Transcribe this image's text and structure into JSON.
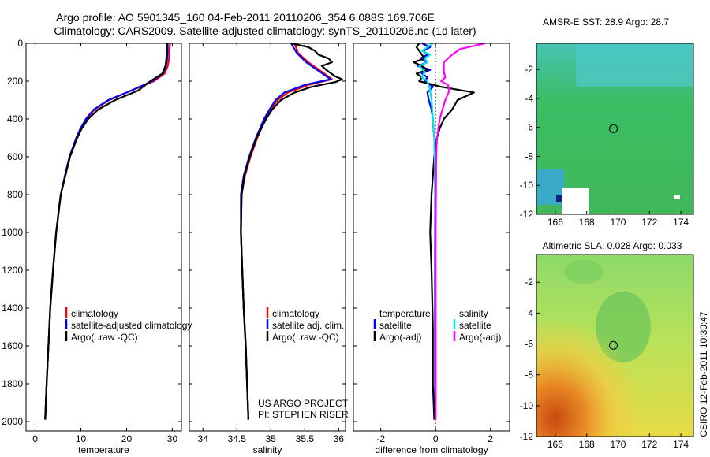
{
  "header": {
    "title_line1": "Argo profile: AO 5901345_160 04-Feb-2011 20110206_354 6.088S 169.706E",
    "title_line2": "Climatology: CARS2009. Satellite-adjusted climatology: synTS_20110206.nc (1d later)"
  },
  "side_label": "CSIRO 12-Feb-2011 10:30:47",
  "colors": {
    "climatology": "#ff0000",
    "satellite": "#0000ff",
    "argo": "#000000",
    "sat_salinity": "#00e5e5",
    "argo_salinity": "#ff00ff"
  },
  "chart_data": [
    {
      "id": "temperature",
      "type": "line",
      "xlabel": "temperature",
      "ylabel": "",
      "xlim": [
        -2,
        32
      ],
      "ylim": [
        2050,
        0
      ],
      "x_ticks": [
        "0",
        "10",
        "20",
        "30"
      ],
      "y_ticks": [
        "0",
        "200",
        "400",
        "600",
        "800",
        "1000",
        "1200",
        "1400",
        "1600",
        "1800",
        "2000"
      ],
      "grid": false,
      "legend": {
        "placement": "lower-center",
        "entries": [
          "climatology",
          "satellite-adjusted climatology",
          "Argo(..raw -QC)"
        ]
      },
      "series": [
        {
          "name": "climatology",
          "color": "#ff0000",
          "depth": [
            0,
            40,
            80,
            120,
            160,
            200,
            250,
            300,
            350,
            400,
            450,
            500,
            600,
            700,
            800,
            1000,
            1200,
            1400,
            1600,
            1800,
            1990
          ],
          "values": [
            29.5,
            29.4,
            29.3,
            29.0,
            28.3,
            26.0,
            21.0,
            16.2,
            13.0,
            11.2,
            10.0,
            9.1,
            7.6,
            6.6,
            5.6,
            4.6,
            3.9,
            3.3,
            2.9,
            2.5,
            2.2
          ]
        },
        {
          "name": "satellite-adjusted climatology",
          "color": "#0000ff",
          "depth": [
            0,
            40,
            80,
            120,
            160,
            200,
            250,
            300,
            350,
            400,
            450,
            500,
            600,
            700,
            800,
            1000,
            1200,
            1400,
            1600,
            1800,
            1990
          ],
          "values": [
            29.0,
            29.0,
            28.9,
            28.6,
            28.0,
            25.6,
            21.0,
            16.0,
            12.8,
            11.1,
            9.9,
            9.0,
            7.5,
            6.5,
            5.6,
            4.6,
            3.9,
            3.3,
            2.9,
            2.5,
            2.2
          ]
        },
        {
          "name": "Argo(..raw -QC)",
          "color": "#000000",
          "depth": [
            0,
            40,
            80,
            120,
            160,
            200,
            250,
            300,
            350,
            400,
            450,
            500,
            600,
            700,
            800,
            1000,
            1200,
            1400,
            1600,
            1800,
            1990
          ],
          "values": [
            28.8,
            28.8,
            28.7,
            28.5,
            27.8,
            25.2,
            22.5,
            17.5,
            13.8,
            11.6,
            10.2,
            9.2,
            7.6,
            6.6,
            5.6,
            4.6,
            3.9,
            3.3,
            2.9,
            2.5,
            2.2
          ]
        }
      ]
    },
    {
      "id": "salinity",
      "type": "line",
      "xlabel": "salinity",
      "ylabel": "",
      "xlim": [
        33.8,
        36.1
      ],
      "ylim": [
        2050,
        0
      ],
      "x_ticks": [
        "34",
        "34.5",
        "35",
        "35.5",
        "36"
      ],
      "grid": false,
      "legend": {
        "placement": "lower-center",
        "entries": [
          "climatology",
          "satellite adj. clim.",
          "Argo(..raw -QC)"
        ]
      },
      "annotations": [
        "US ARGO PROJECT",
        "PI: STEPHEN RISER"
      ],
      "series": [
        {
          "name": "climatology",
          "color": "#ff0000",
          "depth": [
            0,
            50,
            100,
            150,
            190,
            220,
            260,
            300,
            350,
            400,
            500,
            600,
            700,
            800,
            1000,
            1200,
            1400,
            1600,
            1800,
            1990
          ],
          "values": [
            35.35,
            35.4,
            35.55,
            35.75,
            35.9,
            35.55,
            35.25,
            35.1,
            35.0,
            34.92,
            34.8,
            34.7,
            34.62,
            34.57,
            34.56,
            34.58,
            34.6,
            34.63,
            34.65,
            34.67
          ]
        },
        {
          "name": "satellite adj. clim.",
          "color": "#0000ff",
          "depth": [
            0,
            50,
            100,
            150,
            190,
            220,
            260,
            300,
            350,
            400,
            500,
            600,
            700,
            800,
            1000,
            1200,
            1400,
            1600,
            1800,
            1990
          ],
          "values": [
            35.3,
            35.38,
            35.52,
            35.72,
            35.88,
            35.5,
            35.2,
            35.07,
            34.98,
            34.9,
            34.78,
            34.68,
            34.6,
            34.56,
            34.56,
            34.58,
            34.6,
            34.63,
            34.65,
            34.67
          ]
        },
        {
          "name": "Argo(..raw -QC)",
          "color": "#000000",
          "depth": [
            0,
            20,
            40,
            60,
            80,
            100,
            120,
            150,
            175,
            190,
            205,
            230,
            260,
            300,
            350,
            400,
            500,
            600,
            700,
            800,
            1000,
            1200,
            1400,
            1600,
            1800,
            1990
          ],
          "values": [
            35.3,
            35.55,
            35.65,
            35.7,
            35.85,
            35.9,
            35.75,
            35.85,
            35.95,
            36.05,
            35.95,
            35.6,
            35.35,
            35.15,
            35.02,
            34.93,
            34.79,
            34.69,
            34.61,
            34.57,
            34.56,
            34.58,
            34.6,
            34.63,
            34.65,
            34.67
          ]
        }
      ]
    },
    {
      "id": "difference",
      "type": "line",
      "xlabel": "difference from climatology",
      "ylabel": "",
      "xlim": [
        -3,
        2.7
      ],
      "ylim": [
        2050,
        0
      ],
      "x_ticks": [
        "-2",
        "0",
        "2"
      ],
      "grid": false,
      "legend": {
        "placement": "lower-center",
        "temperature_header": "temperature",
        "salinity_header": "salinity",
        "entries": [
          "satellite",
          "Argo(-adj)",
          "satellite",
          "Argo(-adj)"
        ]
      },
      "series": [
        {
          "name": "temperature satellite",
          "color": "#0000ff",
          "depth": [
            0,
            20,
            40,
            60,
            80,
            100,
            120,
            140,
            160,
            180,
            200,
            230,
            260,
            300,
            350,
            400,
            450,
            500,
            600,
            800,
            1000,
            1200,
            1500,
            1800,
            1990
          ],
          "values": [
            -0.5,
            -0.2,
            -0.45,
            -0.3,
            -0.55,
            -0.3,
            -0.65,
            -0.2,
            -0.5,
            -0.3,
            -0.4,
            -0.1,
            -0.3,
            -0.25,
            -0.15,
            -0.1,
            -0.08,
            -0.05,
            -0.03,
            -0.02,
            -0.02,
            -0.02,
            -0.02,
            -0.02,
            -0.02
          ]
        },
        {
          "name": "temperature Argo(-adj)",
          "color": "#000000",
          "depth": [
            0,
            20,
            40,
            60,
            80,
            100,
            120,
            140,
            160,
            180,
            200,
            230,
            260,
            300,
            350,
            400,
            450,
            500,
            600,
            800,
            1000,
            1200,
            1500,
            1800,
            1990
          ],
          "values": [
            -0.6,
            -0.7,
            -0.6,
            -0.5,
            -0.4,
            -0.8,
            -0.5,
            -0.3,
            -0.7,
            -0.5,
            -0.6,
            0.2,
            1.4,
            0.8,
            0.6,
            0.3,
            0.15,
            0.05,
            -0.05,
            -0.15,
            -0.2,
            -0.15,
            -0.1,
            -0.1,
            -0.05
          ]
        },
        {
          "name": "salinity satellite",
          "color": "#00e5e5",
          "depth": [
            0,
            20,
            40,
            60,
            80,
            100,
            120,
            150,
            180,
            200,
            250,
            300,
            400,
            500,
            700,
            1000,
            1500,
            1990
          ],
          "values": [
            -0.1,
            -0.3,
            -0.5,
            -0.2,
            -0.4,
            -0.3,
            -0.6,
            -0.4,
            -0.5,
            -0.3,
            -0.2,
            -0.15,
            -0.1,
            -0.05,
            -0.02,
            -0.01,
            0,
            0
          ]
        },
        {
          "name": "salinity Argo(-adj)",
          "color": "#ff00ff",
          "depth": [
            0,
            10,
            30,
            60,
            100,
            150,
            180,
            200,
            220,
            250,
            300,
            350,
            400,
            450,
            500,
            600,
            800,
            1000,
            1500,
            1990
          ],
          "values": [
            1.8,
            1.5,
            0.9,
            0.6,
            0.3,
            0.3,
            0.35,
            0.2,
            0.45,
            0.5,
            0.35,
            0.25,
            0.15,
            0.1,
            0.05,
            0.02,
            0.01,
            0,
            0,
            0
          ]
        }
      ]
    },
    {
      "id": "amsre-sst-map",
      "type": "heatmap",
      "title": "AMSR-E SST: 28.9 Argo: 28.7",
      "xlim": [
        164.8,
        174.8
      ],
      "ylim": [
        -12,
        -0.2
      ],
      "x_ticks": [
        "166",
        "168",
        "170",
        "172",
        "174"
      ],
      "y_ticks": [
        "-2",
        "-4",
        "-6",
        "-8",
        "-10",
        "-12"
      ],
      "marker": {
        "lon": 169.7,
        "lat": -6.09
      }
    },
    {
      "id": "altimetric-sla-map",
      "type": "heatmap",
      "title": "Altimetric SLA: 0.028 Argo: 0.033",
      "xlim": [
        164.8,
        174.8
      ],
      "ylim": [
        -12,
        -0.2
      ],
      "x_ticks": [
        "166",
        "168",
        "170",
        "172",
        "174"
      ],
      "y_ticks": [
        "-2",
        "-4",
        "-6",
        "-8",
        "-10",
        "-12"
      ],
      "marker": {
        "lon": 169.7,
        "lat": -6.09
      }
    }
  ]
}
